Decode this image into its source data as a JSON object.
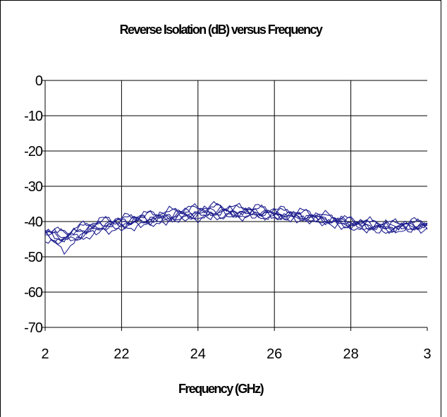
{
  "chart_data": {
    "type": "line",
    "title": "Reverse Isolation (dB) versus Frequency",
    "xlabel": "Frequency (GHz)",
    "ylabel": "",
    "x_tick_labels": [
      "2",
      "22",
      "24",
      "26",
      "28",
      "3"
    ],
    "y_tick_labels": [
      "0",
      "-10",
      "-20",
      "-30",
      "-40",
      "-50",
      "-60",
      "-70"
    ],
    "ylim": [
      -70,
      0
    ],
    "grid": true,
    "legend": "none",
    "line_color": "#1f1f8f",
    "series": [
      {
        "x": [
          0,
          0.25,
          0.5,
          0.75,
          1,
          1.25,
          1.5,
          1.75,
          2,
          2.25,
          2.5,
          2.75,
          3,
          3.25,
          3.5,
          3.75,
          4,
          4.25,
          4.5,
          4.75,
          5
        ],
        "values": [
          -43,
          -44.5,
          -42,
          -40.5,
          -40,
          -39,
          -38.5,
          -37.5,
          -37,
          -36.5,
          -37,
          -37,
          -37.5,
          -38,
          -38.5,
          -39.5,
          -40.5,
          -41,
          -41.5,
          -41,
          -41
        ]
      },
      {
        "x": [
          0,
          0.25,
          0.5,
          0.75,
          1,
          1.25,
          1.5,
          1.75,
          2,
          2.25,
          2.5,
          2.75,
          3,
          3.25,
          3.5,
          3.75,
          4,
          4.25,
          4.5,
          4.75,
          5
        ],
        "values": [
          -44,
          -46,
          -43,
          -41,
          -40.5,
          -39.5,
          -39,
          -38,
          -37.5,
          -37,
          -37.5,
          -37.5,
          -38,
          -38.5,
          -39,
          -40,
          -41,
          -41.5,
          -42,
          -41.5,
          -41.5
        ]
      },
      {
        "x": [
          0,
          0.25,
          0.5,
          0.75,
          1,
          1.25,
          1.5,
          1.75,
          2,
          2.25,
          2.5,
          2.75,
          3,
          3.25,
          3.5,
          3.75,
          4,
          4.25,
          4.5,
          4.75,
          5
        ],
        "values": [
          -42.5,
          -43.5,
          -41.5,
          -40,
          -39.5,
          -38.5,
          -38,
          -37,
          -36.5,
          -36,
          -36.5,
          -36.5,
          -37,
          -37.5,
          -38,
          -39,
          -40,
          -40.5,
          -41,
          -40.5,
          -40.5
        ]
      },
      {
        "x": [
          0,
          0.25,
          0.5,
          0.75,
          1,
          1.25,
          1.5,
          1.75,
          2,
          2.25,
          2.5,
          2.75,
          3,
          3.25,
          3.5,
          3.75,
          4,
          4.25,
          4.5,
          4.75,
          5
        ],
        "values": [
          -45,
          -48,
          -44.5,
          -42.5,
          -42,
          -41,
          -40,
          -39,
          -38.5,
          -38,
          -38,
          -38,
          -38.5,
          -39,
          -39.5,
          -40.5,
          -41.5,
          -42,
          -42.5,
          -42,
          -42
        ]
      },
      {
        "x": [
          0,
          0.25,
          0.5,
          0.75,
          1,
          1.25,
          1.5,
          1.75,
          2,
          2.25,
          2.5,
          2.75,
          3,
          3.25,
          3.5,
          3.75,
          4,
          4.25,
          4.5,
          4.75,
          5
        ],
        "values": [
          -43.5,
          -45,
          -43.5,
          -41.5,
          -41,
          -40,
          -39.5,
          -38.5,
          -38,
          -37.5,
          -37.5,
          -37.5,
          -38,
          -38.5,
          -39,
          -40,
          -41,
          -41.5,
          -42,
          -41.5,
          -41.5
        ]
      },
      {
        "x": [
          0,
          0.25,
          0.5,
          0.75,
          1,
          1.25,
          1.5,
          1.75,
          2,
          2.25,
          2.5,
          2.75,
          3,
          3.25,
          3.5,
          3.75,
          4,
          4.25,
          4.5,
          4.75,
          5
        ],
        "values": [
          -44,
          -45.5,
          -44,
          -42,
          -41.5,
          -40.5,
          -40,
          -39,
          -38.5,
          -38,
          -38,
          -38,
          -38.5,
          -39,
          -39.5,
          -40.5,
          -41.5,
          -42,
          -42.5,
          -42,
          -41.5
        ]
      },
      {
        "x": [
          0,
          0.25,
          0.5,
          0.75,
          1,
          1.25,
          1.5,
          1.75,
          2,
          2.25,
          2.5,
          2.75,
          3,
          3.25,
          3.5,
          3.75,
          4,
          4.25,
          4.5,
          4.75,
          5
        ],
        "values": [
          -42,
          -43,
          -41,
          -39.5,
          -39,
          -38,
          -37.5,
          -36.5,
          -36,
          -35.5,
          -36,
          -36,
          -36.5,
          -37,
          -37.5,
          -38.5,
          -39.5,
          -40,
          -40.5,
          -40,
          -40
        ]
      },
      {
        "x": [
          0,
          0.25,
          0.5,
          0.75,
          1,
          1.25,
          1.5,
          1.75,
          2,
          2.25,
          2.5,
          2.75,
          3,
          3.25,
          3.5,
          3.75,
          4,
          4.25,
          4.5,
          4.75,
          5
        ],
        "values": [
          -43,
          -44,
          -42.5,
          -41,
          -40,
          -39.5,
          -39,
          -39,
          -39,
          -38.5,
          -38.5,
          -38.5,
          -38.5,
          -38.5,
          -39,
          -39.5,
          -40,
          -40.5,
          -41,
          -41,
          -41
        ]
      }
    ]
  }
}
